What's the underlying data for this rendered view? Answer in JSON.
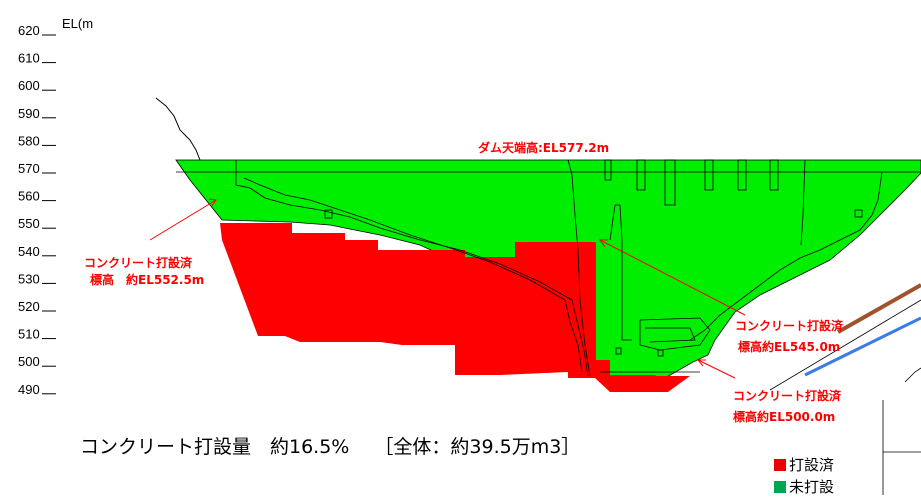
{
  "colors": {
    "placed": "#ff0000",
    "unplaced": "#00ee00",
    "annotation": "#ff0000",
    "legend_placed": "#ee0000",
    "legend_unplaced": "#00a651",
    "brown_line": "#a0522d",
    "blue_line": "#3a7be8"
  },
  "axis": {
    "unit_label": "EL(m",
    "ticks": [
      "620",
      "610",
      "600",
      "590",
      "580",
      "570",
      "560",
      "550",
      "540",
      "530",
      "520",
      "510",
      "500",
      "490"
    ]
  },
  "labels": {
    "crest": "ダム天端高:EL577.2m",
    "left_line1": "コンクリート打設済",
    "left_line2": "標高　約EL552.5m",
    "right_upper_line1": "コンクリート打設済",
    "right_upper_line2": "標高約EL545.0m",
    "right_lower_line1": "コンクリート打設済",
    "right_lower_line2": "標高約EL500.0m"
  },
  "summary": {
    "text": "コンクリート打設量　約16.5%　 ［全体：約39.5万m3］"
  },
  "legend": {
    "placed": "打設済",
    "unplaced": "未打設"
  }
}
